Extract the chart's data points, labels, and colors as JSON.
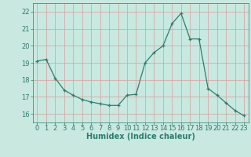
{
  "x": [
    0,
    1,
    2,
    3,
    4,
    5,
    6,
    7,
    8,
    9,
    10,
    11,
    12,
    13,
    14,
    15,
    16,
    17,
    18,
    19,
    20,
    21,
    22,
    23
  ],
  "y": [
    19.1,
    19.2,
    18.1,
    17.4,
    17.1,
    16.85,
    16.7,
    16.6,
    16.5,
    16.5,
    17.1,
    17.15,
    19.0,
    19.6,
    20.0,
    21.3,
    21.9,
    20.4,
    20.4,
    17.5,
    17.1,
    16.65,
    16.2,
    15.9
  ],
  "ylim": [
    15.5,
    22.5
  ],
  "yticks": [
    16,
    17,
    18,
    19,
    20,
    21,
    22
  ],
  "xlim": [
    -0.5,
    23.5
  ],
  "xticks": [
    0,
    1,
    2,
    3,
    4,
    5,
    6,
    7,
    8,
    9,
    10,
    11,
    12,
    13,
    14,
    15,
    16,
    17,
    18,
    19,
    20,
    21,
    22,
    23
  ],
  "xlabel": "Humidex (Indice chaleur)",
  "line_color": "#2e7d6e",
  "marker": "+",
  "bg_color": "#c8e8e0",
  "grid_color": "#d4a0a0",
  "tick_color": "#2e7d6e",
  "label_fontsize": 6.0,
  "xlabel_fontsize": 7.0
}
